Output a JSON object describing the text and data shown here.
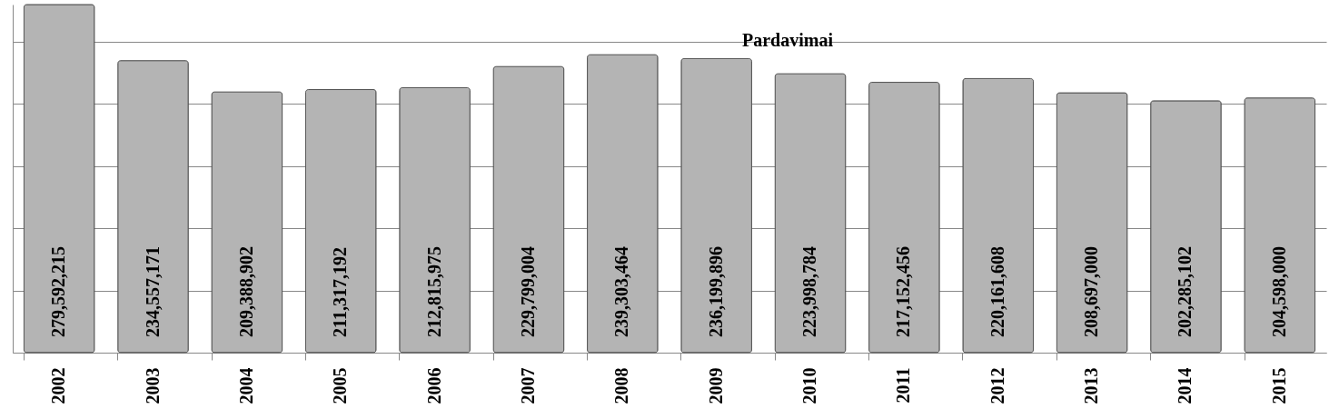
{
  "chart_data": {
    "type": "bar",
    "title": "Pardavimai",
    "categories": [
      "2002",
      "2003",
      "2004",
      "2005",
      "2006",
      "2007",
      "2008",
      "2009",
      "2010",
      "2011",
      "2012",
      "2013",
      "2014",
      "2015"
    ],
    "values": [
      279592215,
      234557171,
      209388902,
      211317192,
      212815975,
      229799004,
      239303464,
      236199896,
      223998784,
      217152456,
      220161608,
      208697000,
      202285102,
      204598000
    ],
    "value_labels": [
      "279,592,215",
      "234,557,171",
      "209,388,902",
      "211,317,192",
      "212,815,975",
      "229,799,004",
      "239,303,464",
      "236,199,896",
      "223,998,784",
      "217,152,456",
      "220,161,608",
      "208,697,000",
      "202,285,102",
      "204,598,000"
    ],
    "color": "#b4b4b4",
    "grid": "y"
  }
}
